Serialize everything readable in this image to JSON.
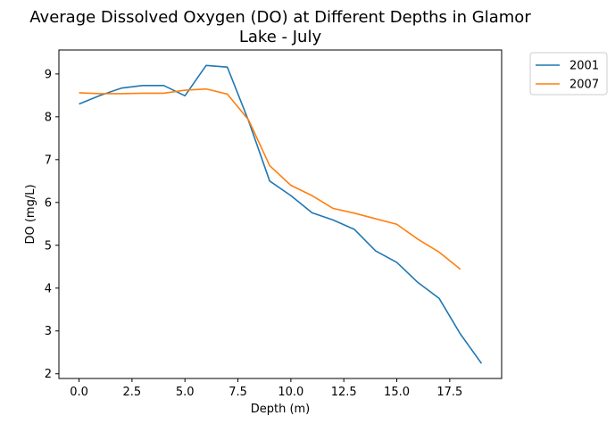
{
  "chart_data": {
    "type": "line",
    "title_lines": [
      "Average Dissolved Oxygen (DO) at Different Depths in Glamor",
      "Lake - July"
    ],
    "xlabel": "Depth (m)",
    "ylabel": "DO (mg/L)",
    "xlim": [
      -0.95,
      19.95
    ],
    "ylim": [
      1.89,
      9.56
    ],
    "xticks": [
      0.0,
      2.5,
      5.0,
      7.5,
      10.0,
      12.5,
      15.0,
      17.5
    ],
    "xtick_labels": [
      "0.0",
      "2.5",
      "5.0",
      "7.5",
      "10.0",
      "12.5",
      "15.0",
      "17.5"
    ],
    "yticks": [
      2,
      3,
      4,
      5,
      6,
      7,
      8,
      9
    ],
    "ytick_labels": [
      "2",
      "3",
      "4",
      "5",
      "6",
      "7",
      "8",
      "9"
    ],
    "grid": false,
    "legend_position": "outside-top-right",
    "series": [
      {
        "name": "2001",
        "color": "#1f77b4",
        "x": [
          0,
          1,
          2,
          3,
          4,
          5,
          6,
          7,
          8,
          9,
          10,
          11,
          12,
          13,
          14,
          15,
          16,
          17,
          18,
          19
        ],
        "y": [
          8.3,
          8.5,
          8.67,
          8.73,
          8.73,
          8.49,
          9.2,
          9.16,
          7.91,
          6.5,
          6.16,
          5.76,
          5.59,
          5.37,
          4.87,
          4.6,
          4.13,
          3.76,
          2.93,
          2.24
        ]
      },
      {
        "name": "2007",
        "color": "#ff7f0e",
        "x": [
          0,
          1,
          2,
          3,
          4,
          5,
          6,
          7,
          8,
          9,
          10,
          11,
          12,
          13,
          14,
          15,
          16,
          17,
          18
        ],
        "y": [
          8.56,
          8.54,
          8.54,
          8.55,
          8.55,
          8.62,
          8.65,
          8.53,
          7.93,
          6.86,
          6.4,
          6.16,
          5.86,
          5.75,
          5.62,
          5.49,
          5.14,
          4.84,
          4.44
        ]
      }
    ]
  }
}
